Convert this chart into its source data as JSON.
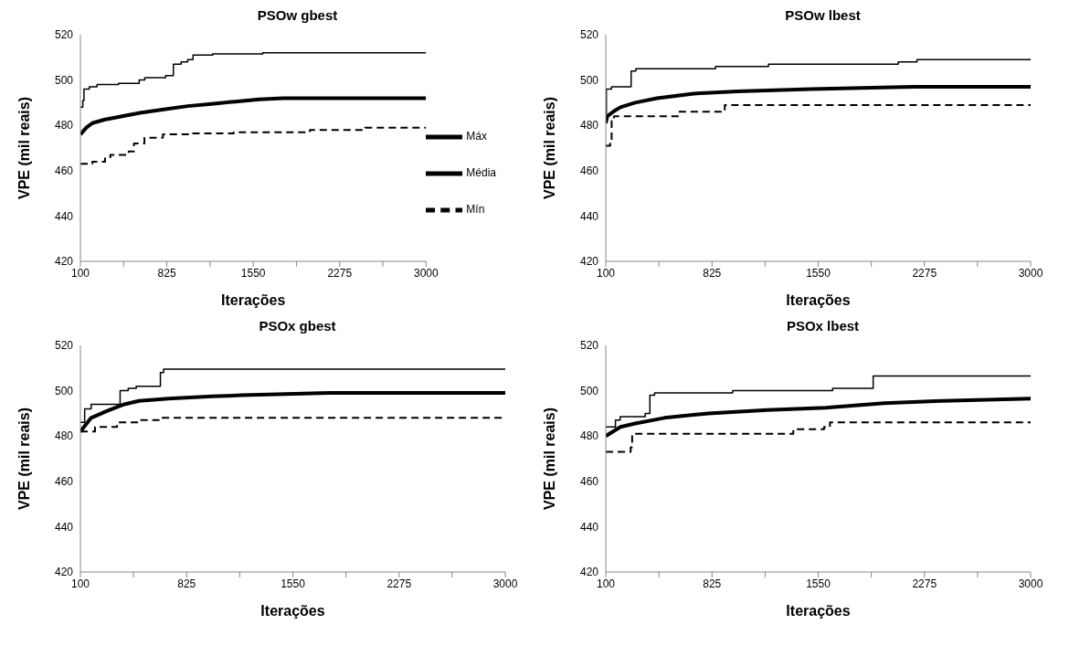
{
  "chart_data": [
    {
      "type": "step",
      "title": "PSOw gbest",
      "xlabel": "Iterações",
      "ylabel": "VPE (mil reais)",
      "xlim": [
        100,
        3000
      ],
      "ylim": [
        420,
        520
      ],
      "xticks": [
        100,
        {
          "value": 462.5,
          "label": null
        },
        825,
        {
          "value": 1187.5,
          "label": null
        },
        1550,
        {
          "value": 1912.5,
          "label": null
        },
        2275,
        {
          "value": 2637.5,
          "label": null
        },
        3000
      ],
      "yticks": [
        420,
        440,
        460,
        480,
        500,
        520
      ],
      "grid": false,
      "legend": "right",
      "marker": "none",
      "series": [
        {
          "name": "Máx",
          "color": "#000000",
          "line_style": "solid",
          "x": [
            100,
            120,
            130,
            175,
            240,
            420,
            593,
            640,
            815,
            880,
            945,
            1000,
            1045,
            1210,
            1630,
            3000
          ],
          "values": [
            488,
            491,
            496,
            497,
            498,
            498.5,
            500,
            501,
            502,
            507,
            508,
            509,
            511,
            511.5,
            512,
            512
          ]
        },
        {
          "name": "Média",
          "type": "line",
          "color": "#000000",
          "line_style": "solid",
          "x": [
            100,
            150,
            200,
            300,
            450,
            600,
            800,
            1000,
            1200,
            1400,
            1600,
            1800,
            3000
          ],
          "values": [
            476,
            479,
            481,
            482.5,
            484,
            485.5,
            487,
            488.5,
            489.5,
            490.5,
            491.5,
            492,
            492
          ]
        },
        {
          "name": "Mín",
          "color": "#000000",
          "line_style": "dashed",
          "x": [
            100,
            200,
            307,
            351,
            505,
            549,
            637,
            792,
            1034,
            1386,
            2025,
            2488,
            3000
          ],
          "values": [
            463,
            464,
            465.5,
            467,
            468.5,
            472,
            474.5,
            476,
            476.5,
            477,
            478,
            479,
            479
          ]
        }
      ]
    },
    {
      "type": "step",
      "title": "PSOw lbest",
      "xlabel": "Iterações",
      "ylabel": "VPE (mil reais)",
      "xlim": [
        100,
        3000
      ],
      "ylim": [
        420,
        520
      ],
      "xticks": [
        100,
        {
          "value": 462.5,
          "label": null
        },
        825,
        {
          "value": 1187.5,
          "label": null
        },
        1550,
        {
          "value": 1912.5,
          "label": null
        },
        2275,
        {
          "value": 2637.5,
          "label": null
        },
        3000
      ],
      "yticks": [
        420,
        440,
        460,
        480,
        500,
        520
      ],
      "grid": false,
      "legend": false,
      "marker": "none",
      "series": [
        {
          "color": "#000000",
          "line_style": "solid",
          "x": [
            100,
            104,
            139,
            273,
            305,
            849,
            1211,
            2096,
            2224,
            3000
          ],
          "values": [
            485,
            496,
            497,
            504,
            505,
            506,
            507,
            508,
            509,
            509
          ]
        },
        {
          "type": "line",
          "color": "#000000",
          "line_style": "solid",
          "x": [
            100,
            110,
            150,
            200,
            300,
            450,
            700,
            1000,
            1500,
            2200,
            3000
          ],
          "values": [
            481,
            484,
            486,
            488,
            490,
            492,
            494,
            495,
            496,
            497,
            497
          ]
        },
        {
          "color": "#000000",
          "line_style": "dashed",
          "x": [
            100,
            130,
            140,
            156,
            603,
            912,
            3000
          ],
          "values": [
            471,
            473,
            482,
            484,
            486,
            489,
            489
          ]
        }
      ]
    },
    {
      "type": "step",
      "title": "PSOx gbest",
      "xlabel": "Iterações",
      "ylabel": "VPE (mil reais)",
      "xlim": [
        100,
        3000
      ],
      "ylim": [
        420,
        520
      ],
      "xticks": [
        100,
        {
          "value": 462.5,
          "label": null
        },
        825,
        {
          "value": 1187.5,
          "label": null
        },
        1550,
        {
          "value": 1912.5,
          "label": null
        },
        2275,
        {
          "value": 2637.5,
          "label": null
        },
        3000
      ],
      "yticks": [
        420,
        440,
        460,
        480,
        500,
        520
      ],
      "grid": false,
      "legend": false,
      "marker": "none",
      "series": [
        {
          "color": "#000000",
          "line_style": "solid",
          "x": [
            100,
            129,
            173,
            371,
            426,
            481,
            646,
            668,
            3000
          ],
          "values": [
            486,
            492,
            494,
            500,
            501,
            502,
            508,
            509.5,
            509.5
          ]
        },
        {
          "type": "line",
          "color": "#000000",
          "line_style": "solid",
          "x": [
            100,
            173,
            280,
            400,
            500,
            700,
            1000,
            1200,
            1800,
            3000
          ],
          "values": [
            482,
            488,
            491,
            494,
            495.5,
            496.5,
            497.5,
            498,
            499,
            499
          ]
        },
        {
          "color": "#000000",
          "line_style": "dashed",
          "x": [
            100,
            200,
            350,
            500,
            650,
            3000
          ],
          "values": [
            482,
            484,
            486,
            487,
            488,
            488
          ]
        }
      ]
    },
    {
      "type": "step",
      "title": "PSOx lbest",
      "xlabel": "Iterações",
      "ylabel": "VPE (mil reais)",
      "xlim": [
        100,
        3000
      ],
      "ylim": [
        420,
        520
      ],
      "xticks": [
        100,
        {
          "value": 462.5,
          "label": null
        },
        825,
        {
          "value": 1187.5,
          "label": null
        },
        1550,
        {
          "value": 1912.5,
          "label": null
        },
        2275,
        {
          "value": 2637.5,
          "label": null
        },
        3000
      ],
      "yticks": [
        420,
        440,
        460,
        480,
        500,
        520
      ],
      "grid": false,
      "legend": false,
      "marker": "none",
      "series": [
        {
          "color": "#000000",
          "line_style": "solid",
          "x": [
            100,
            166,
            198,
            369,
            401,
            433,
            966,
            1648,
            1925,
            3000
          ],
          "values": [
            484,
            487,
            488.5,
            490,
            498,
            499,
            500,
            501,
            506.5,
            506.5
          ]
        },
        {
          "type": "line",
          "color": "#000000",
          "line_style": "solid",
          "x": [
            100,
            200,
            300,
            500,
            800,
            1200,
            1600,
            2000,
            2400,
            3000
          ],
          "values": [
            480,
            484,
            485.5,
            488,
            490,
            491.5,
            492.5,
            494.5,
            495.5,
            496.5
          ]
        },
        {
          "color": "#000000",
          "line_style": "dashed",
          "x": [
            100,
            270,
            280,
            1350,
            1380,
            1590,
            1630,
            3000
          ],
          "values": [
            473,
            475,
            481,
            481,
            483,
            484,
            486,
            486
          ]
        }
      ]
    }
  ]
}
